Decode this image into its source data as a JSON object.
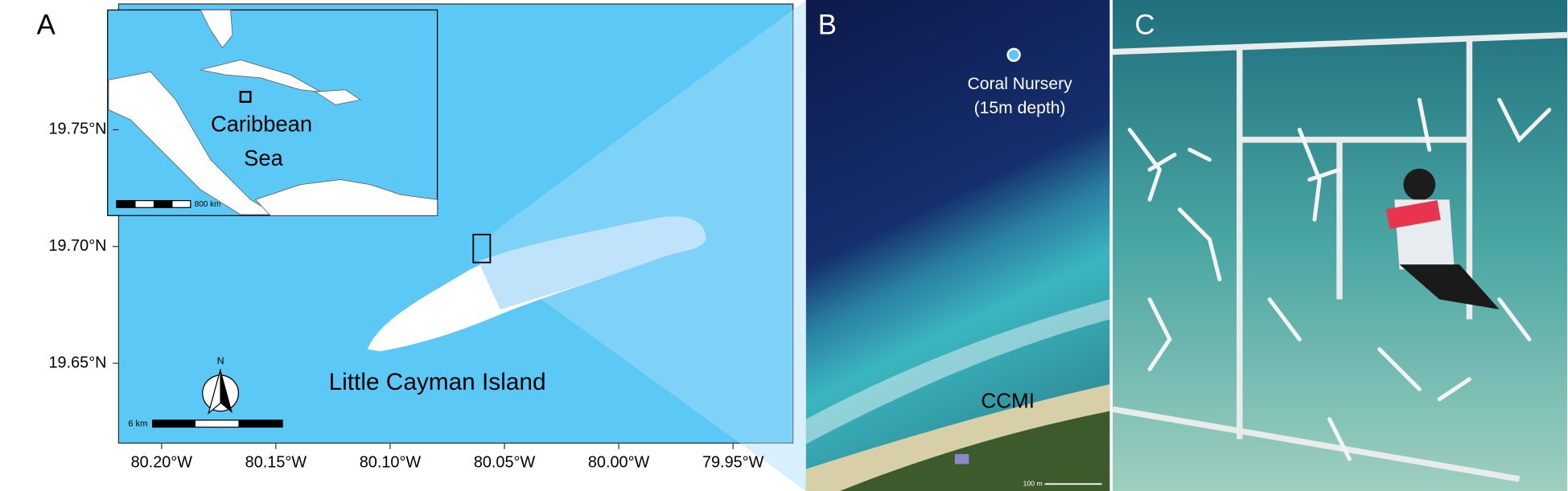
{
  "panels": [
    {
      "label": "A"
    },
    {
      "label": "B"
    },
    {
      "label": "C"
    }
  ],
  "map": {
    "y_ticks": [
      {
        "value": 19.75,
        "label": "19.75°N"
      },
      {
        "value": 19.7,
        "label": "19.70°N"
      },
      {
        "value": 19.65,
        "label": "19.65°N"
      }
    ],
    "x_ticks": [
      {
        "value": 80.2,
        "label": "80.20°W"
      },
      {
        "value": 80.15,
        "label": "80.15°W"
      },
      {
        "value": 80.1,
        "label": "80.10°W"
      },
      {
        "value": 80.05,
        "label": "80.05°W"
      },
      {
        "value": 80.0,
        "label": "80.00°W"
      },
      {
        "value": 79.95,
        "label": "79.95°W"
      }
    ],
    "inset": {
      "label_line1": "Caribbean",
      "label_line2": "Sea",
      "scale_bar": "800 km"
    },
    "north": "N",
    "scale_bar": "6 km",
    "island_label": "Little Cayman Island"
  },
  "photo_b": {
    "site_label_line1": "Coral Nursery",
    "site_label_line2": "(15m depth)",
    "station_label": "CCMI",
    "scale_bar": "100 m"
  }
}
